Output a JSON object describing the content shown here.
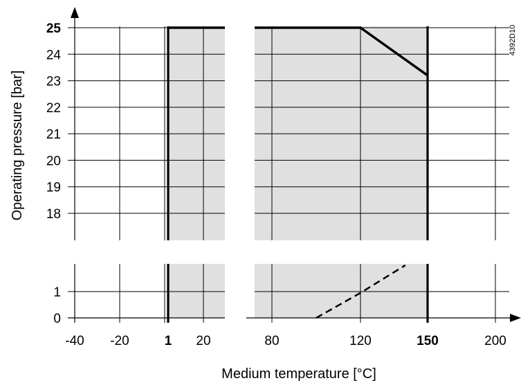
{
  "chart_data": {
    "type": "area",
    "title": "",
    "xlabel": "Medium temperature [°C]",
    "ylabel": "Operating pressure [bar]",
    "figure_code": "4392D10",
    "axis_breaks": {
      "x": true,
      "y": true
    },
    "x_ticks": [
      {
        "label": "-40",
        "value": -40,
        "bold": false
      },
      {
        "label": "-20",
        "value": -20,
        "bold": false
      },
      {
        "label": "1",
        "value": 1,
        "bold": true
      },
      {
        "label": "20",
        "value": 20,
        "bold": false
      },
      {
        "label": "80",
        "value": 80,
        "bold": false
      },
      {
        "label": "120",
        "value": 120,
        "bold": false
      },
      {
        "label": "150",
        "value": 150,
        "bold": true
      },
      {
        "label": "200",
        "value": 200,
        "bold": false
      }
    ],
    "y_ticks_upper": [
      {
        "label": "25",
        "value": 25,
        "bold": true
      },
      {
        "label": "24",
        "value": 24,
        "bold": false
      },
      {
        "label": "23",
        "value": 23,
        "bold": false
      },
      {
        "label": "22",
        "value": 22,
        "bold": false
      },
      {
        "label": "21",
        "value": 21,
        "bold": false
      },
      {
        "label": "20",
        "value": 20,
        "bold": false
      },
      {
        "label": "19",
        "value": 19,
        "bold": false
      },
      {
        "label": "18",
        "value": 18,
        "bold": false
      }
    ],
    "y_ticks_lower": [
      {
        "label": "1",
        "value": 1,
        "bold": false
      },
      {
        "label": "0",
        "value": 0,
        "bold": false
      }
    ],
    "series": [
      {
        "style": "solid",
        "points": [
          [
            1,
            25
          ],
          [
            30,
            25
          ]
        ]
      },
      {
        "style": "solid",
        "points": [
          [
            70,
            25
          ],
          [
            120,
            25
          ],
          [
            150,
            23.2
          ]
        ]
      },
      {
        "style": "dashed",
        "points": [
          [
            100,
            0
          ],
          [
            120,
            0.95
          ],
          [
            140,
            2.0
          ]
        ]
      }
    ],
    "shaded_regions": [
      {
        "x": [
          1,
          30
        ],
        "color": "#e0e0e0"
      },
      {
        "x": [
          70,
          150
        ],
        "color": "#e0e0e0"
      }
    ],
    "limit_lines_x": [
      1,
      150
    ],
    "colors": {
      "fill": "#e0e0e0",
      "line": "#000000"
    }
  }
}
